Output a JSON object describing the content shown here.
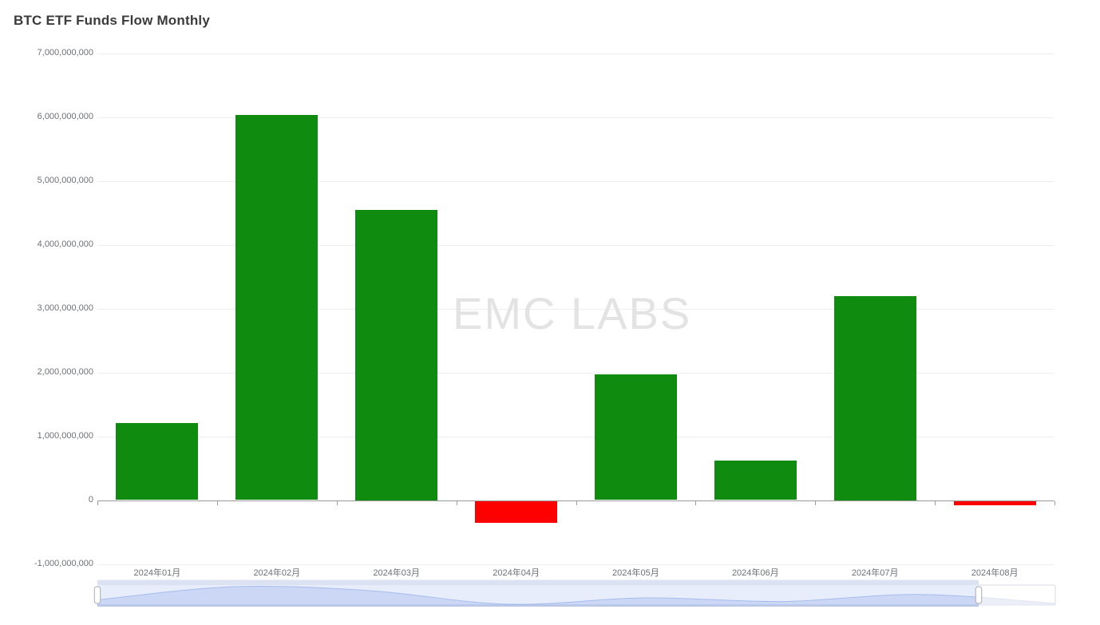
{
  "page": {
    "title": "BTC ETF Funds Flow Monthly"
  },
  "watermark": {
    "text": "EMC LABS"
  },
  "chart_data": {
    "type": "bar",
    "title": "BTC ETF Funds Flow Monthly",
    "xlabel": "",
    "ylabel": "",
    "categories": [
      "2024年01月",
      "2024年02月",
      "2024年03月",
      "2024年04月",
      "2024年05月",
      "2024年06月",
      "2024年07月",
      "2024年08月"
    ],
    "values": [
      1210000000,
      6030000000,
      4550000000,
      -360000000,
      1970000000,
      620000000,
      3200000000,
      -80000000
    ],
    "ylim": [
      -1000000000,
      7000000000
    ],
    "y_tick_values": [
      7000000000,
      6000000000,
      5000000000,
      4000000000,
      3000000000,
      2000000000,
      1000000000,
      0,
      -1000000000
    ],
    "y_tick_labels": [
      "7,000,000,000",
      "6,000,000,000",
      "5,000,000,000",
      "4,000,000,000",
      "3,000,000,000",
      "2,000,000,000",
      "1,000,000,000",
      "0",
      "-1,000,000,000"
    ],
    "grid": true,
    "legend_position": "none",
    "colors": {
      "positive": "#0f8b0f",
      "negative": "#fd0000"
    },
    "datazoom": {
      "window_start_pct": 0,
      "window_end_pct": 92
    }
  }
}
